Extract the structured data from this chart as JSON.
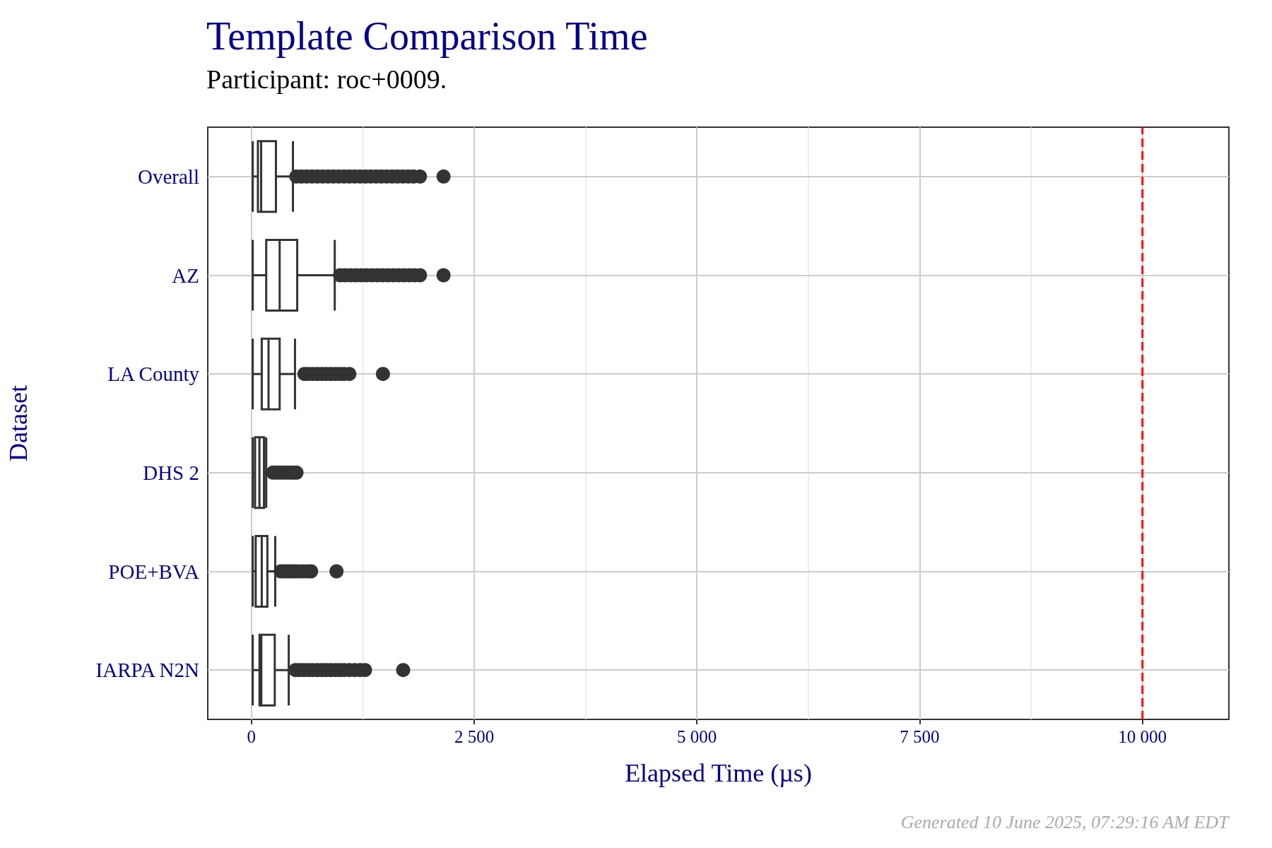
{
  "chart_data": {
    "type": "box",
    "orientation": "horizontal",
    "title": "Template Comparison Time",
    "subtitle": "Participant: roc+0009.",
    "xlabel": "Elapsed Time (µs)",
    "ylabel": "Dataset",
    "categories": [
      "Overall",
      "AZ",
      "LA County",
      "DHS 2",
      "POE+BVA",
      "IARPA N2N"
    ],
    "boxes": [
      {
        "low": 15,
        "q1": 73,
        "median": 109,
        "q3": 275,
        "high": 466,
        "outliers": [
          504,
          560,
          620,
          680,
          740,
          800,
          860,
          920,
          980,
          1040,
          1100,
          1160,
          1220,
          1280,
          1340,
          1400,
          1460,
          1520,
          1580,
          1640,
          1700,
          1760,
          1820,
          1892,
          2156
        ]
      },
      {
        "low": 15,
        "q1": 166,
        "median": 317,
        "q3": 514,
        "high": 935,
        "outliers": [
          995,
          1050,
          1110,
          1170,
          1230,
          1290,
          1350,
          1410,
          1470,
          1530,
          1590,
          1650,
          1710,
          1770,
          1830,
          1892,
          2156
        ]
      },
      {
        "low": 15,
        "q1": 116,
        "median": 192,
        "q3": 317,
        "high": 489,
        "outliers": [
          595,
          640,
          690,
          740,
          790,
          840,
          890,
          940,
          990,
          1040,
          1099,
          1476
        ]
      },
      {
        "low": 15,
        "q1": 41,
        "median": 90,
        "q3": 141,
        "high": 166,
        "outliers": [
          242,
          280,
          320,
          360,
          400,
          440,
          475,
          506
        ]
      },
      {
        "low": 15,
        "q1": 48,
        "median": 116,
        "q3": 179,
        "high": 267,
        "outliers": [
          330,
          370,
          410,
          450,
          490,
          530,
          580,
          630,
          670,
          955
        ]
      },
      {
        "low": 15,
        "q1": 91,
        "median": 111,
        "q3": 262,
        "high": 419,
        "outliers": [
          494,
          540,
          590,
          640,
          690,
          740,
          790,
          840,
          890,
          940,
          990,
          1040,
          1100,
          1160,
          1220,
          1275,
          1703
        ]
      }
    ],
    "color": "#333333",
    "xlim": [
      -490,
      10970
    ],
    "xticks": [
      0,
      {
        "value": 2500,
        "label": "2 500"
      },
      {
        "value": 5000,
        "label": "5 000"
      },
      {
        "value": 7500,
        "label": "7 500"
      },
      {
        "value": 10000,
        "label": "10 000"
      }
    ],
    "grid": true,
    "ref_lines": [
      {
        "axis": "x",
        "value": 10000,
        "color": "#ff0000",
        "line_style": "dashed"
      }
    ],
    "annotations": [
      "Generated 10 June 2025, 07:29:16 AM EDT"
    ]
  }
}
